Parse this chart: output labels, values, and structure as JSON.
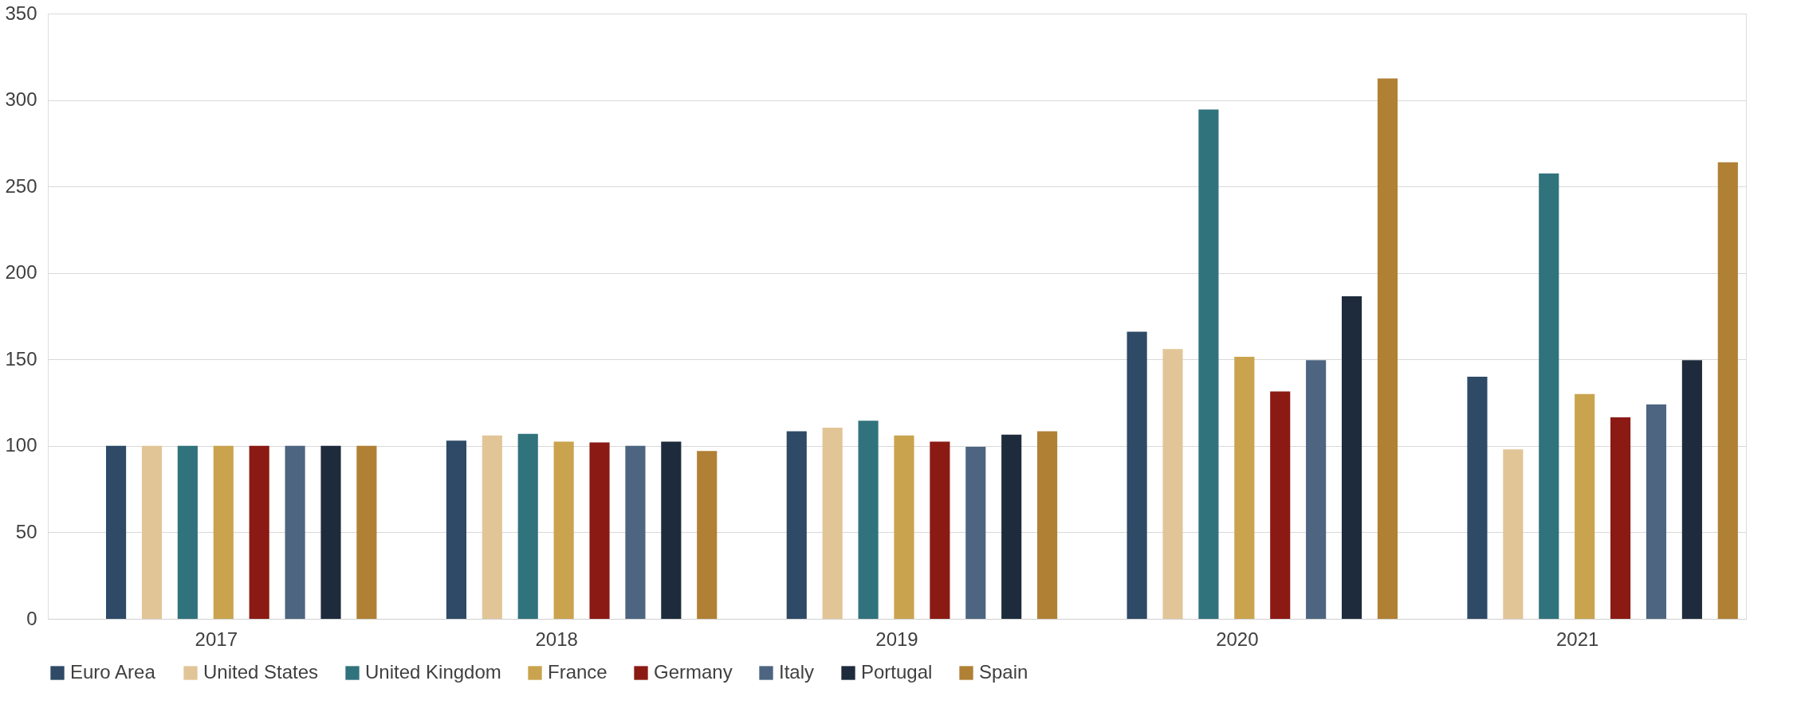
{
  "chart_data": {
    "type": "bar",
    "categories": [
      "2017",
      "2018",
      "2019",
      "2020",
      "2021"
    ],
    "series": [
      {
        "name": "Euro Area",
        "color": "#2e4a66",
        "values": [
          100,
          103,
          108.5,
          166,
          140
        ]
      },
      {
        "name": "United States",
        "color": "#e2c597",
        "values": [
          100,
          106,
          110.5,
          156,
          98
        ]
      },
      {
        "name": "United Kingdom",
        "color": "#31737c",
        "values": [
          100,
          107,
          114.5,
          294.5,
          257.5
        ]
      },
      {
        "name": "France",
        "color": "#c9a34e",
        "values": [
          100,
          102.5,
          106,
          151.5,
          130
        ]
      },
      {
        "name": "Germany",
        "color": "#8b1a14",
        "values": [
          100,
          102,
          102.5,
          131.5,
          116.5
        ]
      },
      {
        "name": "Italy",
        "color": "#4d6580",
        "values": [
          100,
          100,
          99.5,
          149.5,
          124
        ]
      },
      {
        "name": "Portugal",
        "color": "#1e2b3c",
        "values": [
          100,
          102.5,
          106.5,
          186.5,
          149.5
        ]
      },
      {
        "name": "Spain",
        "color": "#b08035",
        "values": [
          100,
          97,
          108.5,
          312.5,
          264
        ]
      }
    ],
    "ylim": [
      0,
      350
    ],
    "yticks": [
      0,
      50,
      100,
      150,
      200,
      250,
      300,
      350
    ],
    "grid": "y",
    "legend": "bottom"
  }
}
